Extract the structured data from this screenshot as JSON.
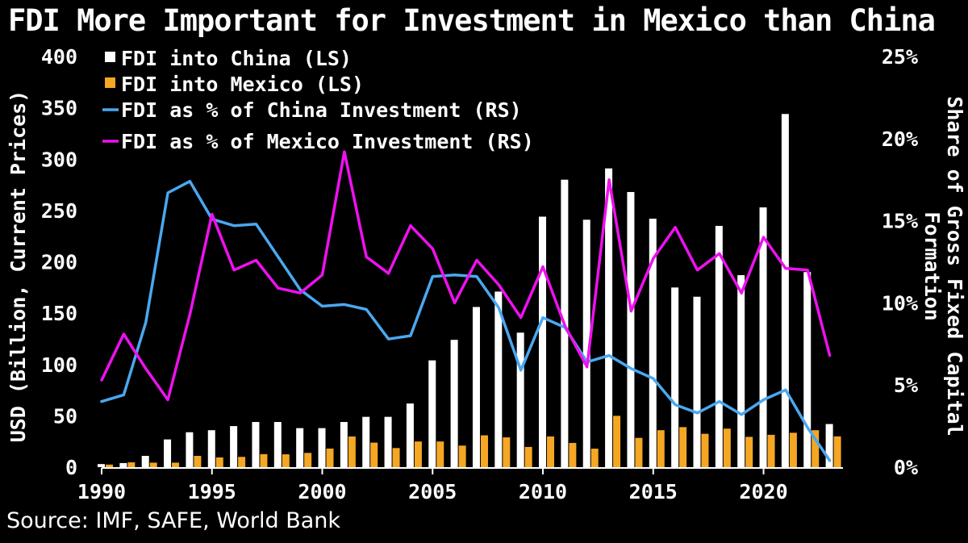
{
  "title": "FDI More Important for Investment in Mexico than China",
  "source": "Source: IMF, SAFE, World Bank",
  "colors": {
    "background": "#000000",
    "text": "#ffffff",
    "china_bar": "#ffffff",
    "mexico_bar": "#f5a623",
    "china_line": "#4aa8f0",
    "mexico_line": "#ee11ee"
  },
  "chart_data": {
    "type": "bar+line",
    "title": "FDI More Important for Investment in Mexico than China",
    "ylabel": "USD (Billion, Current Prices)",
    "y2label": [
      "Share of Gross Fixed Capital",
      "Formation"
    ],
    "ylim": [
      0,
      400
    ],
    "y2lim": [
      0,
      25
    ],
    "yticks": [
      0,
      50,
      100,
      150,
      200,
      250,
      300,
      350,
      400
    ],
    "ytick_labels": [
      "0",
      "50",
      "100",
      "150",
      "200",
      "250",
      "300",
      "350",
      "400"
    ],
    "y2ticks": [
      0,
      5,
      10,
      15,
      20,
      25
    ],
    "y2tick_labels": [
      "0%",
      "5%",
      "10%",
      "15%",
      "20%",
      "25%"
    ],
    "xlim": [
      1990,
      2023.6
    ],
    "xticks": [
      1990,
      1995,
      2000,
      2005,
      2010,
      2015,
      2020
    ],
    "xtick_labels": [
      "1990",
      "1995",
      "2000",
      "2005",
      "2010",
      "2015",
      "2020"
    ],
    "x": [
      1990,
      1991,
      1992,
      1993,
      1994,
      1995,
      1996,
      1997,
      1998,
      1999,
      2000,
      2001,
      2002,
      2003,
      2004,
      2005,
      2006,
      2007,
      2008,
      2009,
      2010,
      2011,
      2012,
      2013,
      2014,
      2015,
      2016,
      2017,
      2018,
      2019,
      2020,
      2021,
      2022,
      2023
    ],
    "series": [
      {
        "name": "FDI into China (LS)",
        "type": "bar",
        "axis": "left",
        "values": [
          3,
          4,
          11,
          27,
          34,
          36,
          40,
          44,
          44,
          38,
          38,
          44,
          49,
          49,
          62,
          104,
          124,
          156,
          171,
          131,
          244,
          280,
          241,
          291,
          268,
          242,
          175,
          166,
          235,
          187,
          253,
          344,
          190,
          42
        ]
      },
      {
        "name": "FDI into Mexico (LS)",
        "type": "bar",
        "axis": "left",
        "values": [
          2.5,
          4.7,
          4.4,
          4.4,
          11,
          9.5,
          10,
          12.7,
          12.5,
          13.9,
          18.1,
          29.9,
          23.9,
          18.6,
          25,
          25,
          21,
          31,
          29,
          19.7,
          29.9,
          23.6,
          18,
          50,
          28.5,
          36,
          39,
          32.5,
          37.5,
          29.5,
          31.5,
          33.5,
          36,
          30
        ]
      },
      {
        "name": "FDI as % of China Investment (RS)",
        "type": "line",
        "axis": "right",
        "values": [
          4.0,
          4.4,
          8.8,
          16.7,
          17.4,
          15.1,
          14.7,
          14.8,
          12.8,
          10.8,
          9.8,
          9.9,
          9.6,
          7.8,
          8.0,
          11.6,
          11.7,
          11.6,
          9.7,
          5.9,
          9.1,
          8.5,
          6.4,
          6.8,
          6.0,
          5.4,
          3.8,
          3.3,
          4.0,
          3.2,
          4.1,
          4.7,
          2.4,
          0.4
        ]
      },
      {
        "name": "FDI as % of Mexico Investment (RS)",
        "type": "line",
        "axis": "right",
        "values": [
          5.3,
          8.1,
          6.0,
          4.1,
          9.3,
          15.4,
          12.0,
          12.6,
          10.9,
          10.6,
          11.7,
          19.2,
          12.8,
          11.8,
          14.7,
          13.3,
          10.0,
          12.6,
          11.1,
          9.1,
          12.2,
          8.6,
          6.1,
          17.5,
          9.5,
          12.7,
          14.6,
          12.0,
          13.0,
          10.6,
          14.0,
          12.1,
          12.0,
          6.8
        ]
      }
    ],
    "legend_position": "top-left"
  }
}
